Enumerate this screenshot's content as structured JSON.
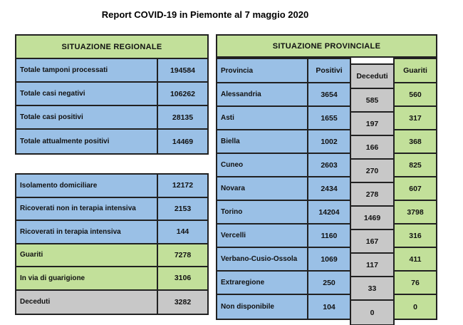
{
  "title": "Report COVID-19 in Piemonte al 7 maggio 2020",
  "colors": {
    "green": "#c2e09a",
    "blue": "#9ac0e6",
    "gray": "#c8c8c8",
    "border": "#212121"
  },
  "regional": {
    "header": "SITUAZIONE REGIONALE",
    "rows": [
      {
        "label": "Totale tamponi processati",
        "value": "194584",
        "variant": "blue"
      },
      {
        "label": "Totale casi negativi",
        "value": "106262",
        "variant": "blue"
      },
      {
        "label": "Totale casi positivi",
        "value": "28135",
        "variant": "blue"
      },
      {
        "label": "Totale attualmente positivi",
        "value": "14469",
        "variant": "blue"
      }
    ]
  },
  "breakdown": {
    "rows": [
      {
        "label": "Isolamento domiciliare",
        "value": "12172",
        "variant": "blue"
      },
      {
        "label": "Ricoverati non in terapia intensiva",
        "value": "2153",
        "variant": "blue"
      },
      {
        "label": "Ricoverati in terapia intensiva",
        "value": "144",
        "variant": "blue"
      },
      {
        "label": "Guariti",
        "value": "7278",
        "variant": "green"
      },
      {
        "label": "In via di guarigione",
        "value": "3106",
        "variant": "green"
      },
      {
        "label": "Deceduti",
        "value": "3282",
        "variant": "gray"
      }
    ]
  },
  "provincial": {
    "header": "SITUAZIONE PROVINCIALE",
    "columns": [
      {
        "key": "provincia",
        "label": "Provincia",
        "variant": "blue"
      },
      {
        "key": "positivi",
        "label": "Positivi",
        "variant": "blue"
      },
      {
        "key": "deceduti",
        "label": "Deceduti",
        "variant": "gray"
      },
      {
        "key": "guariti",
        "label": "Guariti",
        "variant": "green"
      }
    ],
    "rows": [
      {
        "provincia": "Alessandria",
        "positivi": "3654",
        "deceduti": "585",
        "guariti": "560"
      },
      {
        "provincia": "Asti",
        "positivi": "1655",
        "deceduti": "197",
        "guariti": "317"
      },
      {
        "provincia": "Biella",
        "positivi": "1002",
        "deceduti": "166",
        "guariti": "368"
      },
      {
        "provincia": "Cuneo",
        "positivi": "2603",
        "deceduti": "270",
        "guariti": "825"
      },
      {
        "provincia": "Novara",
        "positivi": "2434",
        "deceduti": "278",
        "guariti": "607"
      },
      {
        "provincia": "Torino",
        "positivi": "14204",
        "deceduti": "1469",
        "guariti": "3798"
      },
      {
        "provincia": "Vercelli",
        "positivi": "1160",
        "deceduti": "167",
        "guariti": "316"
      },
      {
        "provincia": "Verbano-Cusio-Ossola",
        "positivi": "1069",
        "deceduti": "117",
        "guariti": "411"
      },
      {
        "provincia": "Extraregione",
        "positivi": "250",
        "deceduti": "33",
        "guariti": "76"
      },
      {
        "provincia": "Non disponibile",
        "positivi": "104",
        "deceduti": "0",
        "guariti": "0"
      }
    ]
  }
}
